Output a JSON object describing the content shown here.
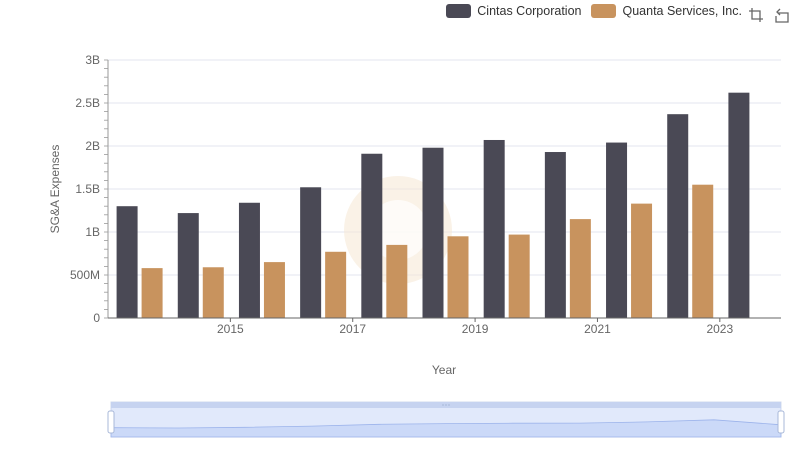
{
  "legend": {
    "items": [
      {
        "label": "Cintas Corporation",
        "color": "#4a4955"
      },
      {
        "label": "Quanta Services, Inc.",
        "color": "#c8935e"
      }
    ]
  },
  "toolbox": {
    "icons": [
      "zoom-select-icon",
      "restore-icon"
    ]
  },
  "chart_data": {
    "type": "bar",
    "title": "",
    "xlabel": "Year",
    "ylabel": "SG&A Expenses",
    "categories": [
      "2014",
      "2015",
      "2016",
      "2017",
      "2018",
      "2019",
      "2020",
      "2021",
      "2022",
      "2023",
      "2024"
    ],
    "x_tick_labels": [
      "2015",
      "2017",
      "2019",
      "2021",
      "2023"
    ],
    "y_tick_labels": [
      "0",
      "500M",
      "1B",
      "1.5B",
      "2B",
      "2.5B",
      "3B"
    ],
    "ylim": [
      0,
      3000000000
    ],
    "grid": true,
    "legend_position": "top-right",
    "series": [
      {
        "name": "Cintas Corporation",
        "color": "#4a4955",
        "values": [
          1300000000,
          1220000000,
          1340000000,
          1520000000,
          1910000000,
          1980000000,
          2070000000,
          1930000000,
          2040000000,
          2370000000,
          2620000000
        ]
      },
      {
        "name": "Quanta Services, Inc.",
        "color": "#c8935e",
        "values": [
          580000000,
          590000000,
          650000000,
          770000000,
          850000000,
          950000000,
          970000000,
          1150000000,
          1330000000,
          1550000000,
          null
        ]
      }
    ]
  }
}
